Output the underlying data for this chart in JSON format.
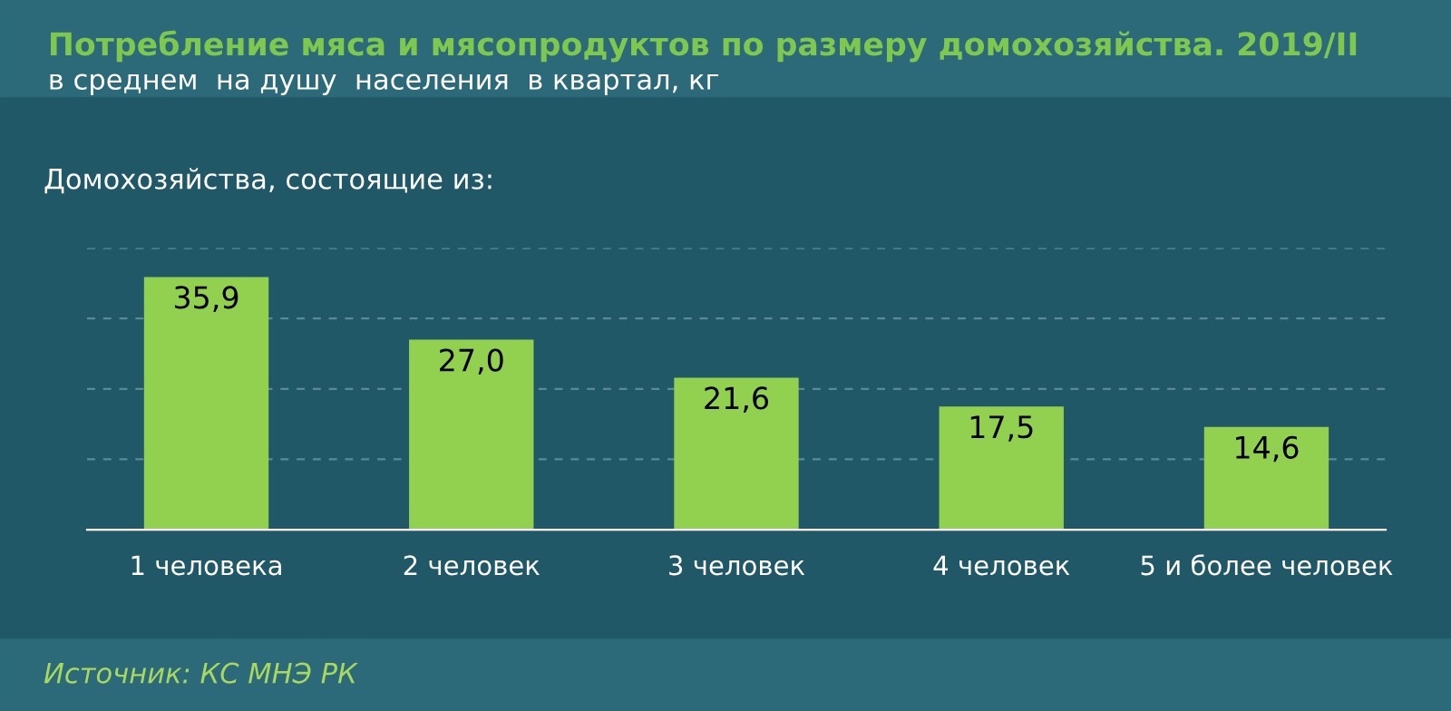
{
  "chart_data": {
    "type": "bar",
    "title": "Потребление мяса и мясопродуктов по размеру домохозяйства. 2019/II",
    "subtitle": "в среднем  на душу  населения  в квартал, кг",
    "annotations": [
      "Домохозяйства, состоящие из:",
      "Источник: КС МНЭ РК"
    ],
    "categories": [
      "1 человека",
      "2 человек",
      "3 человек",
      "4 человек",
      "5 и более человек"
    ],
    "values": [
      35.9,
      27.0,
      21.6,
      17.5,
      14.6
    ],
    "value_labels": [
      "35,9",
      "27,0",
      "21,6",
      "17,5",
      "14,6"
    ],
    "color": "#92d050",
    "ylim": [
      0,
      40
    ],
    "yticks": [
      {
        "value": 0,
        "label": null
      },
      {
        "value": 10,
        "label": null
      },
      {
        "value": 20,
        "label": null
      },
      {
        "value": 30,
        "label": null
      },
      {
        "value": 40,
        "label": null
      }
    ],
    "grid": "y",
    "tick_labels": "x"
  }
}
